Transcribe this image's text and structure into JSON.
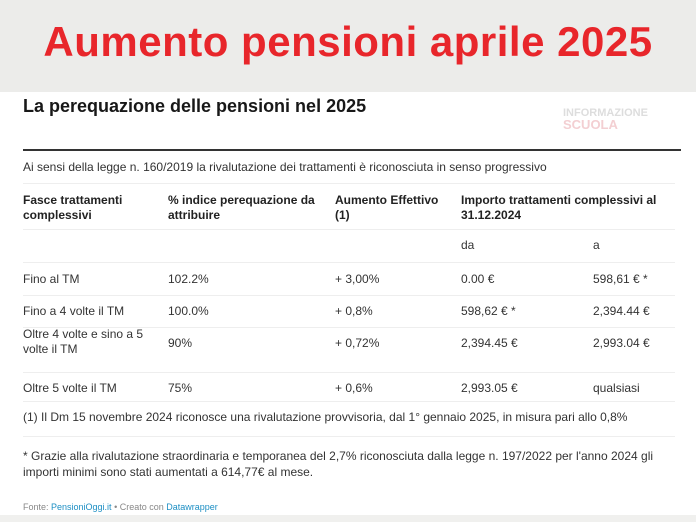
{
  "banner": {
    "title": "Aumento pensioni aprile 2025",
    "title_color": "#e8262b"
  },
  "title": "La perequazione delle pensioni nel 2025",
  "logo": {
    "line1": "INFORMAZIONE",
    "line2": "SCUOLA"
  },
  "subtitle": "Ai sensi della legge n. 160/2019 la rivalutazione dei trattamenti è riconosciuta in senso progressivo",
  "table": {
    "headers": [
      "Fasce trattamenti complessivi",
      "% indice perequazione da attribuire",
      "Aumento Effettivo (1)",
      "Importo trattamenti complessivi al 31.12.2024"
    ],
    "subheaders": [
      "da",
      "a"
    ],
    "rows": [
      [
        "Fino al TM",
        "102.2%",
        "+ 3,00%",
        "0.00 €",
        "598,61 € *"
      ],
      [
        "Fino a 4 volte il TM",
        "100.0%",
        "+ 0,8%",
        "598,62 € *",
        "2,394.44 €"
      ],
      [
        "Oltre 4 volte e sino a 5 volte il TM",
        "90%",
        "+ 0,72%",
        "2,394.45 €",
        "2,993.04 €"
      ],
      [
        "Oltre 5 volte il TM",
        "75%",
        "+ 0,6%",
        "2,993.05 €",
        "qualsiasi"
      ]
    ]
  },
  "notes": [
    "(1) Il Dm 15 novembre 2024 riconosce una rivalutazione provvisoria, dal 1° gennaio 2025, in misura pari allo 0,8%",
    "* Grazie alla rivalutazione straordinaria e temporanea del 2,7% riconosciuta dalla legge n. 197/2022 per l'anno 2024 gli importi minimi sono stati aumentati a 614,77€ al mese."
  ],
  "footer": {
    "source_label": "Fonte: ",
    "source": "PensioniOggi.it",
    "sep": " • Creato con ",
    "tool": "Datawrapper"
  }
}
